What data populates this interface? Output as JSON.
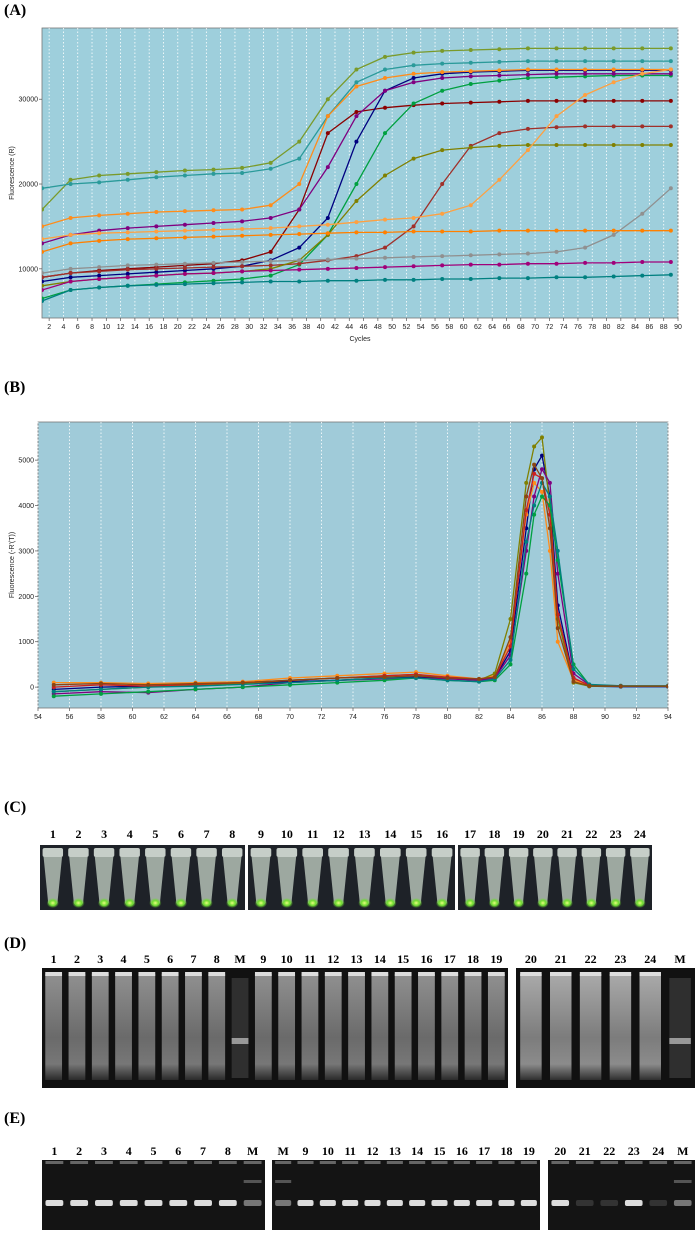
{
  "chart_data": [
    {
      "type": "line",
      "panel": "(A)",
      "y_label": "Fluorescence (R)",
      "x_label": "Cycles",
      "x": [
        1,
        5,
        9,
        13,
        17,
        21,
        25,
        29,
        33,
        37,
        41,
        45,
        49,
        53,
        57,
        61,
        65,
        69,
        73,
        77,
        81,
        85,
        89
      ],
      "xlim": [
        1,
        90
      ],
      "ylim": [
        4200,
        38400
      ],
      "xticks": [
        2,
        4,
        6,
        8,
        10,
        12,
        14,
        16,
        18,
        20,
        22,
        24,
        26,
        28,
        30,
        32,
        34,
        36,
        38,
        40,
        42,
        44,
        46,
        48,
        50,
        52,
        54,
        56,
        58,
        60,
        62,
        64,
        66,
        68,
        70,
        72,
        74,
        76,
        78,
        80,
        82,
        84,
        86,
        88,
        90
      ],
      "yticks": [
        10000,
        20000,
        30000
      ],
      "grid": "x",
      "background": "#9ecfdc",
      "series": [
        {
          "color": "#7a9a2a",
          "values": [
            17000,
            20500,
            21000,
            21200,
            21400,
            21600,
            21700,
            21900,
            22500,
            25000,
            30000,
            33500,
            35000,
            35500,
            35700,
            35800,
            35900,
            36000,
            36000,
            36000,
            36000,
            36000,
            36000
          ]
        },
        {
          "color": "#2a9a9a",
          "values": [
            19500,
            20000,
            20200,
            20500,
            20800,
            21000,
            21200,
            21300,
            21800,
            23000,
            28000,
            32000,
            33500,
            34000,
            34200,
            34300,
            34400,
            34500,
            34500,
            34500,
            34500,
            34500,
            34500
          ]
        },
        {
          "color": "#8b0000",
          "values": [
            9000,
            9500,
            9800,
            10000,
            10200,
            10400,
            10600,
            11000,
            12000,
            17000,
            26000,
            28500,
            29000,
            29300,
            29500,
            29600,
            29700,
            29800,
            29800,
            29800,
            29800,
            29800,
            29800
          ]
        },
        {
          "color": "#000080",
          "values": [
            8500,
            9000,
            9200,
            9400,
            9600,
            9800,
            10000,
            10300,
            11000,
            12500,
            16000,
            25000,
            31000,
            32500,
            33000,
            33200,
            33300,
            33400,
            33400,
            33400,
            33400,
            33400,
            33400
          ]
        },
        {
          "color": "#00a040",
          "values": [
            6500,
            7500,
            7800,
            8000,
            8200,
            8400,
            8600,
            8800,
            9200,
            10500,
            14000,
            20000,
            26000,
            29500,
            31000,
            31800,
            32200,
            32500,
            32600,
            32700,
            32800,
            32800,
            32800
          ]
        },
        {
          "color": "#800080",
          "values": [
            13000,
            14000,
            14500,
            14800,
            15000,
            15200,
            15400,
            15600,
            16000,
            17000,
            22000,
            28000,
            31000,
            32000,
            32500,
            32700,
            32800,
            32900,
            33000,
            33000,
            33000,
            33000,
            33000
          ]
        },
        {
          "color": "#ff8c1a",
          "values": [
            15000,
            16000,
            16300,
            16500,
            16700,
            16800,
            16900,
            17000,
            17500,
            20000,
            28000,
            31500,
            32500,
            33000,
            33200,
            33300,
            33400,
            33500,
            33500,
            33500,
            33500,
            33500,
            33500
          ]
        },
        {
          "color": "#a0302a",
          "values": [
            9000,
            9500,
            9700,
            9900,
            10000,
            10100,
            10200,
            10300,
            10400,
            10600,
            11000,
            11500,
            12500,
            15000,
            20000,
            24500,
            26000,
            26500,
            26700,
            26800,
            26800,
            26800,
            26800
          ]
        },
        {
          "color": "#808000",
          "values": [
            8000,
            8500,
            8800,
            9000,
            9200,
            9400,
            9500,
            9700,
            10000,
            11000,
            14000,
            18000,
            21000,
            23000,
            24000,
            24300,
            24500,
            24600,
            24600,
            24600,
            24600,
            24600,
            24600
          ]
        },
        {
          "color": "#ffa040",
          "values": [
            13500,
            14000,
            14200,
            14300,
            14400,
            14500,
            14600,
            14700,
            14800,
            15000,
            15200,
            15500,
            15800,
            16000,
            16500,
            17500,
            20500,
            24000,
            28000,
            30500,
            32000,
            33000,
            33500
          ]
        },
        {
          "color": "#909090",
          "values": [
            9500,
            10000,
            10200,
            10400,
            10500,
            10600,
            10700,
            10800,
            10900,
            11000,
            11100,
            11200,
            11300,
            11400,
            11500,
            11600,
            11700,
            11800,
            12000,
            12500,
            14000,
            16500,
            19500
          ]
        },
        {
          "color": "#ff8000",
          "values": [
            12000,
            13000,
            13300,
            13500,
            13600,
            13700,
            13800,
            13900,
            14000,
            14100,
            14200,
            14300,
            14300,
            14400,
            14400,
            14400,
            14500,
            14500,
            14500,
            14500,
            14500,
            14500,
            14500
          ]
        },
        {
          "color": "#a0007a",
          "values": [
            7500,
            8500,
            8800,
            9000,
            9200,
            9400,
            9500,
            9700,
            9800,
            9900,
            10000,
            10100,
            10200,
            10300,
            10400,
            10500,
            10500,
            10600,
            10600,
            10700,
            10700,
            10800,
            10800
          ]
        },
        {
          "color": "#008080",
          "values": [
            6200,
            7500,
            7800,
            8000,
            8100,
            8200,
            8300,
            8400,
            8500,
            8500,
            8600,
            8600,
            8700,
            8700,
            8800,
            8800,
            8900,
            8900,
            9000,
            9000,
            9100,
            9200,
            9300
          ]
        }
      ]
    },
    {
      "type": "line",
      "panel": "(B)",
      "y_label": "Fluorescence (-R'(T))",
      "x": [
        55,
        58,
        61,
        64,
        67,
        70,
        73,
        76,
        78,
        80,
        82,
        83,
        84,
        85,
        85.5,
        86,
        86.5,
        87,
        88,
        89,
        91,
        94
      ],
      "xlim": [
        54,
        94
      ],
      "ylim": [
        -460,
        5840
      ],
      "xticks": [
        54,
        56,
        58,
        60,
        62,
        64,
        66,
        68,
        70,
        72,
        74,
        76,
        78,
        80,
        82,
        84,
        86,
        88,
        90,
        92,
        94
      ],
      "yticks": [
        0,
        1000,
        2000,
        3000,
        4000,
        5000
      ],
      "grid": "x",
      "background": "#a0cbd9",
      "series": [
        {
          "color": "#000080",
          "values": [
            -50,
            0,
            20,
            40,
            80,
            120,
            150,
            200,
            220,
            200,
            150,
            200,
            800,
            3500,
            4800,
            5100,
            4200,
            1800,
            200,
            20,
            10,
            10
          ]
        },
        {
          "color": "#ff8c1a",
          "values": [
            100,
            100,
            80,
            100,
            120,
            200,
            250,
            300,
            330,
            250,
            180,
            250,
            1000,
            3800,
            4500,
            4300,
            3000,
            1000,
            150,
            50,
            30,
            30
          ]
        },
        {
          "color": "#808000",
          "values": [
            -100,
            -50,
            0,
            50,
            80,
            150,
            200,
            250,
            280,
            200,
            150,
            300,
            1500,
            4500,
            5300,
            5500,
            4000,
            1500,
            100,
            20,
            20,
            20
          ]
        },
        {
          "color": "#800080",
          "values": [
            -150,
            -100,
            -120,
            -50,
            0,
            100,
            150,
            180,
            200,
            180,
            150,
            200,
            700,
            3000,
            4200,
            4800,
            4500,
            2500,
            300,
            50,
            20,
            20
          ]
        },
        {
          "color": "#cc2020",
          "values": [
            0,
            50,
            20,
            60,
            100,
            150,
            200,
            250,
            280,
            220,
            180,
            220,
            900,
            3900,
            4700,
            4600,
            3800,
            1600,
            200,
            40,
            20,
            20
          ]
        },
        {
          "color": "#00a040",
          "values": [
            -200,
            -150,
            -100,
            -50,
            0,
            50,
            100,
            150,
            200,
            150,
            120,
            150,
            500,
            2500,
            3800,
            4200,
            4000,
            2800,
            500,
            50,
            20,
            20
          ]
        },
        {
          "color": "#008080",
          "values": [
            -100,
            -50,
            0,
            20,
            60,
            100,
            150,
            200,
            200,
            150,
            120,
            180,
            600,
            3200,
            4000,
            4500,
            4200,
            3000,
            400,
            60,
            30,
            30
          ]
        },
        {
          "color": "#8b4513",
          "values": [
            50,
            80,
            50,
            80,
            100,
            150,
            200,
            220,
            250,
            200,
            180,
            220,
            1100,
            4200,
            4900,
            4600,
            3500,
            1300,
            120,
            30,
            20,
            20
          ]
        }
      ]
    }
  ],
  "photos": {
    "C": {
      "panel": "(C)",
      "lanes": [
        [
          "1",
          "2",
          "3",
          "4",
          "5",
          "6",
          "7",
          "8"
        ],
        [
          "9",
          "10",
          "11",
          "12",
          "13",
          "14",
          "15",
          "16"
        ],
        [
          "17",
          "18",
          "19",
          "20",
          "21",
          "22",
          "23",
          "24"
        ]
      ]
    },
    "D": {
      "panel": "(D)",
      "lanes": [
        [
          "1",
          "2",
          "3",
          "4",
          "5",
          "6",
          "7",
          "8",
          "M",
          "9",
          "10",
          "11",
          "12",
          "13",
          "14",
          "15",
          "16",
          "17",
          "18",
          "19"
        ],
        [
          "20",
          "21",
          "22",
          "23",
          "24",
          "M"
        ]
      ]
    },
    "E": {
      "panel": "(E)",
      "lanes": [
        [
          "1",
          "2",
          "3",
          "4",
          "5",
          "6",
          "7",
          "8",
          "M"
        ],
        [
          "M",
          "9",
          "10",
          "11",
          "12",
          "13",
          "14",
          "15",
          "16",
          "17",
          "18",
          "19"
        ],
        [
          "20",
          "21",
          "22",
          "23",
          "24",
          "M"
        ]
      ]
    }
  }
}
